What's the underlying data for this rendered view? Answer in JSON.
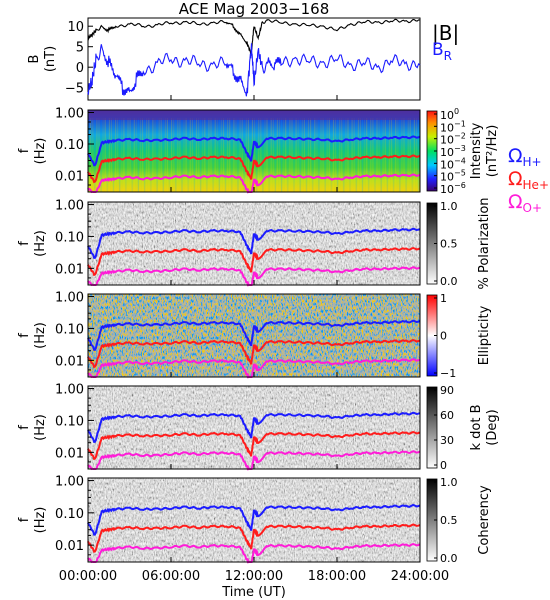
{
  "chart_data": {
    "title": "ACE Mag 2003−168",
    "xlabel": "Time (UT)",
    "x_ticks": [
      "00:00:00",
      "06:00:00",
      "12:00:00",
      "18:00:00",
      "24:00:00"
    ],
    "x_range_hours": [
      0,
      24
    ],
    "panels": [
      {
        "type": "line",
        "ylabel": "B",
        "yunit": "(nT)",
        "yticks": [
          "10",
          "5",
          "0",
          "−5"
        ],
        "ylim": [
          -8,
          12
        ],
        "legend": [
          {
            "label": "|B|",
            "color": "#000000"
          },
          {
            "label": "B",
            "sub": "R",
            "color": "#1c1cff"
          }
        ]
      },
      {
        "type": "heatmap",
        "ylabel": "f",
        "yunit": "(Hz)",
        "yticks": [
          "1.00",
          "0.10",
          "0.01"
        ],
        "ylim_log": [
          0.003,
          1.2
        ],
        "colorbar": {
          "label": "Intensity",
          "unit": "(nT²/Hz)",
          "ticks": [
            {
              "base": "10",
              "exp": "0"
            },
            {
              "base": "10",
              "exp": "−1"
            },
            {
              "base": "10",
              "exp": "−2"
            },
            {
              "base": "10",
              "exp": "−3"
            },
            {
              "base": "10",
              "exp": "−4"
            },
            {
              "base": "10",
              "exp": "−5"
            },
            {
              "base": "10",
              "exp": "−6"
            }
          ]
        },
        "legend": [
          {
            "label": "Ω",
            "sub": "H+",
            "color": "#1c1cff"
          },
          {
            "label": "Ω",
            "sub": "He+",
            "color": "#ff1c1c"
          },
          {
            "label": "Ω",
            "sub": "O+",
            "color": "#ff1cd8"
          }
        ]
      },
      {
        "type": "heatmap",
        "ylabel": "f",
        "yunit": "(Hz)",
        "yticks": [
          "1.00",
          "0.10",
          "0.01"
        ],
        "colorbar": {
          "label": "% Polarization",
          "unit": "",
          "ticks": [
            "1.0",
            "0.5",
            "0.0"
          ]
        }
      },
      {
        "type": "heatmap",
        "ylabel": "f",
        "yunit": "(Hz)",
        "yticks": [
          "1.00",
          "0.10",
          "0.01"
        ],
        "colorbar": {
          "label": "Ellipticity",
          "unit": "",
          "ticks": [
            "1",
            "0",
            "−1"
          ]
        }
      },
      {
        "type": "heatmap",
        "ylabel": "f",
        "yunit": "(Hz)",
        "yticks": [
          "1.00",
          "0.10",
          "0.01"
        ],
        "colorbar": {
          "label": "k dot B",
          "unit": "(Deg)",
          "ticks": [
            "90",
            "60",
            "30",
            "0"
          ]
        }
      },
      {
        "type": "heatmap",
        "ylabel": "f",
        "yunit": "(Hz)",
        "yticks": [
          "1.00",
          "0.10",
          "0.01"
        ],
        "colorbar": {
          "label": "Coherency",
          "unit": "",
          "ticks": [
            "1.0",
            "0.5",
            "0.0"
          ]
        }
      }
    ],
    "gyrofrequency_lines": {
      "x_hours": [
        0,
        0.5,
        1,
        1.5,
        2,
        3,
        4,
        5,
        6,
        7,
        8,
        9,
        10,
        11,
        11.5,
        11.8,
        12,
        12.3,
        13,
        14,
        15,
        16,
        17,
        18,
        19,
        20,
        21,
        22,
        23,
        24
      ],
      "H+_hz": [
        0.05,
        0.02,
        0.11,
        0.12,
        0.13,
        0.14,
        0.13,
        0.13,
        0.14,
        0.15,
        0.14,
        0.15,
        0.15,
        0.14,
        0.05,
        0.03,
        0.12,
        0.08,
        0.15,
        0.15,
        0.15,
        0.14,
        0.14,
        0.12,
        0.14,
        0.15,
        0.15,
        0.16,
        0.16,
        0.17
      ],
      "He+_hz": [
        0.013,
        0.006,
        0.028,
        0.03,
        0.033,
        0.035,
        0.033,
        0.033,
        0.035,
        0.038,
        0.035,
        0.038,
        0.038,
        0.035,
        0.013,
        0.008,
        0.03,
        0.02,
        0.038,
        0.038,
        0.038,
        0.035,
        0.035,
        0.03,
        0.035,
        0.038,
        0.038,
        0.04,
        0.04,
        0.042
      ],
      "O+_hz": [
        0.004,
        0.0025,
        0.007,
        0.0075,
        0.008,
        0.0088,
        0.008,
        0.008,
        0.0088,
        0.0095,
        0.0088,
        0.0095,
        0.0095,
        0.0088,
        0.0035,
        0.0025,
        0.0075,
        0.005,
        0.0095,
        0.0095,
        0.0095,
        0.0088,
        0.0088,
        0.0075,
        0.0088,
        0.0095,
        0.0095,
        0.01,
        0.01,
        0.0105
      ]
    },
    "B_total_nT": {
      "x_hours": [
        0,
        0.3,
        0.6,
        1,
        1.5,
        2,
        3,
        4,
        5,
        6,
        7,
        8,
        9,
        10,
        10.5,
        11,
        11.5,
        11.8,
        12,
        12.3,
        12.6,
        13,
        14,
        15,
        16,
        17,
        18,
        19,
        20,
        21,
        22,
        23,
        24
      ],
      "values": [
        7,
        8,
        9,
        10,
        9,
        10,
        10.5,
        10,
        10.3,
        10.8,
        11,
        10.5,
        10.8,
        11,
        10,
        8,
        6,
        3,
        10,
        7,
        11,
        11.5,
        10.8,
        10.5,
        10.2,
        10,
        9,
        10.5,
        11,
        11,
        11.2,
        11.3,
        11.5
      ]
    },
    "B_R_nT": {
      "x_hours": [
        0,
        0.3,
        0.6,
        1,
        1.5,
        2,
        2.5,
        3,
        3.5,
        4,
        5,
        6,
        7,
        8,
        9,
        10,
        10.5,
        11,
        11.5,
        11.8,
        12,
        12.3,
        12.6,
        13,
        13.5,
        14,
        15,
        16,
        17,
        18,
        19,
        20,
        21,
        22,
        23,
        24
      ],
      "values": [
        -6,
        -3,
        2,
        5,
        1,
        -2,
        -5,
        -6,
        -3,
        -1,
        1,
        2,
        1.5,
        1,
        0.5,
        1,
        -1,
        -3,
        -6,
        5,
        -4,
        4,
        0,
        1,
        0.5,
        1,
        2,
        1.5,
        1,
        2,
        0.5,
        1,
        0,
        1.5,
        1,
        0.5
      ]
    }
  }
}
